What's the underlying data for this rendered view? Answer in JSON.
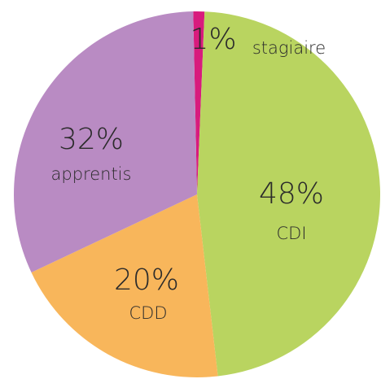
{
  "chart_data": {
    "type": "pie",
    "categories": [
      "stagiaire",
      "CDI",
      "CDD",
      "apprentis"
    ],
    "values": [
      1,
      48,
      20,
      32
    ],
    "value_labels": [
      "1%",
      "48%",
      "20%",
      "32%"
    ],
    "colors": [
      "#d81b7d",
      "#b9d460",
      "#f8b65b",
      "#b98bc3"
    ]
  }
}
